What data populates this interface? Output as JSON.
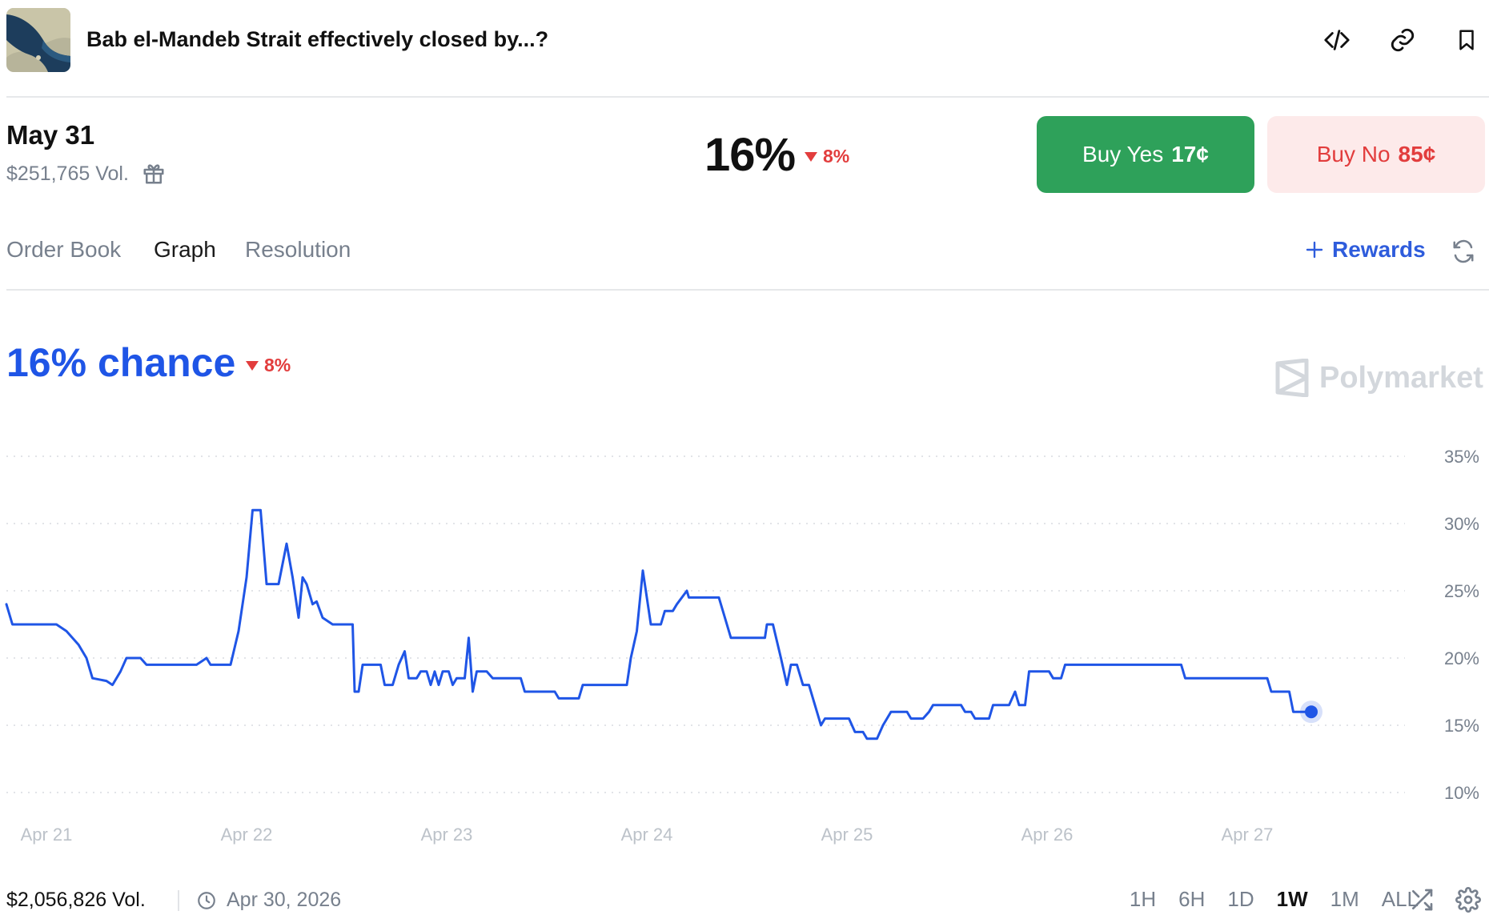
{
  "header": {
    "title": "Bab el-Mandeb Strait effectively closed by...?",
    "icons": [
      "embed-code-icon",
      "link-icon",
      "bookmark-icon"
    ]
  },
  "outcome": {
    "date": "May 31",
    "volume": "$251,765 Vol.",
    "probability": "16%",
    "change": "8%",
    "change_direction": "down",
    "buy_yes_label": "Buy Yes",
    "buy_yes_price": "17¢",
    "buy_no_label": "Buy No",
    "buy_no_price": "85¢"
  },
  "tabs": {
    "items": [
      "Order Book",
      "Graph",
      "Resolution"
    ],
    "active": "Graph",
    "rewards_label": "Rewards"
  },
  "chance": {
    "label": "16% chance",
    "change": "8%"
  },
  "brand": {
    "name": "Polymarket"
  },
  "chart_data": {
    "type": "line",
    "series": [
      {
        "color": "#1f55e6",
        "points": [
          [
            0,
            24
          ],
          [
            0.03,
            22.5
          ],
          [
            0.25,
            22.5
          ],
          [
            0.3,
            22
          ],
          [
            0.36,
            21
          ],
          [
            0.4,
            20
          ],
          [
            0.43,
            18.5
          ],
          [
            0.5,
            18.3
          ],
          [
            0.53,
            18
          ],
          [
            0.57,
            19
          ],
          [
            0.6,
            20
          ],
          [
            0.67,
            20
          ],
          [
            0.7,
            19.5
          ],
          [
            0.95,
            19.5
          ],
          [
            1.0,
            20
          ],
          [
            1.02,
            19.5
          ],
          [
            1.12,
            19.5
          ],
          [
            1.16,
            22
          ],
          [
            1.2,
            26
          ],
          [
            1.23,
            31
          ],
          [
            1.27,
            31
          ],
          [
            1.3,
            25.5
          ],
          [
            1.36,
            25.5
          ],
          [
            1.4,
            28.5
          ],
          [
            1.43,
            26
          ],
          [
            1.46,
            23
          ],
          [
            1.48,
            26
          ],
          [
            1.5,
            25.5
          ],
          [
            1.53,
            24
          ],
          [
            1.55,
            24.2
          ],
          [
            1.58,
            23
          ],
          [
            1.63,
            22.5
          ],
          [
            1.73,
            22.5
          ],
          [
            1.74,
            17.5
          ],
          [
            1.76,
            17.5
          ],
          [
            1.78,
            19.5
          ],
          [
            1.87,
            19.5
          ],
          [
            1.89,
            18
          ],
          [
            1.93,
            18
          ],
          [
            1.96,
            19.5
          ],
          [
            1.99,
            20.5
          ],
          [
            2.01,
            18.5
          ],
          [
            2.05,
            18.5
          ],
          [
            2.07,
            19
          ],
          [
            2.1,
            19
          ],
          [
            2.12,
            18
          ],
          [
            2.14,
            19
          ],
          [
            2.16,
            18
          ],
          [
            2.18,
            19
          ],
          [
            2.21,
            19
          ],
          [
            2.23,
            18
          ],
          [
            2.25,
            18.5
          ],
          [
            2.29,
            18.5
          ],
          [
            2.31,
            21.5
          ],
          [
            2.33,
            17.5
          ],
          [
            2.35,
            19
          ],
          [
            2.4,
            19
          ],
          [
            2.43,
            18.5
          ],
          [
            2.57,
            18.5
          ],
          [
            2.59,
            17.5
          ],
          [
            2.74,
            17.5
          ],
          [
            2.76,
            17
          ],
          [
            2.86,
            17
          ],
          [
            2.88,
            18
          ],
          [
            3.1,
            18
          ],
          [
            3.12,
            20
          ],
          [
            3.15,
            22
          ],
          [
            3.18,
            26.5
          ],
          [
            3.22,
            22.5
          ],
          [
            3.27,
            22.5
          ],
          [
            3.29,
            23.5
          ],
          [
            3.33,
            23.5
          ],
          [
            3.35,
            24
          ],
          [
            3.4,
            25
          ],
          [
            3.41,
            24.5
          ],
          [
            3.56,
            24.5
          ],
          [
            3.59,
            23
          ],
          [
            3.62,
            21.5
          ],
          [
            3.79,
            21.5
          ],
          [
            3.8,
            22.5
          ],
          [
            3.83,
            22.5
          ],
          [
            3.87,
            20
          ],
          [
            3.9,
            18
          ],
          [
            3.92,
            19.5
          ],
          [
            3.95,
            19.5
          ],
          [
            3.98,
            18
          ],
          [
            4.01,
            18
          ],
          [
            4.03,
            17
          ],
          [
            4.05,
            16
          ],
          [
            4.07,
            15
          ],
          [
            4.09,
            15.5
          ],
          [
            4.21,
            15.5
          ],
          [
            4.24,
            14.5
          ],
          [
            4.28,
            14.5
          ],
          [
            4.3,
            14
          ],
          [
            4.35,
            14
          ],
          [
            4.38,
            15
          ],
          [
            4.42,
            16
          ],
          [
            4.5,
            16
          ],
          [
            4.52,
            15.5
          ],
          [
            4.58,
            15.5
          ],
          [
            4.61,
            16
          ],
          [
            4.63,
            16.5
          ],
          [
            4.77,
            16.5
          ],
          [
            4.79,
            16
          ],
          [
            4.82,
            16
          ],
          [
            4.84,
            15.5
          ],
          [
            4.91,
            15.5
          ],
          [
            4.93,
            16.5
          ],
          [
            5.01,
            16.5
          ],
          [
            5.04,
            17.5
          ],
          [
            5.06,
            16.5
          ],
          [
            5.09,
            16.5
          ],
          [
            5.11,
            19
          ],
          [
            5.21,
            19
          ],
          [
            5.23,
            18.5
          ],
          [
            5.27,
            18.5
          ],
          [
            5.29,
            19.5
          ],
          [
            5.45,
            19.5
          ],
          [
            5.6,
            19.5
          ],
          [
            5.87,
            19.5
          ],
          [
            5.89,
            18.5
          ],
          [
            6.27,
            18.5
          ],
          [
            6.3,
            18.5
          ],
          [
            6.32,
            17.5
          ],
          [
            6.41,
            17.5
          ],
          [
            6.43,
            16
          ],
          [
            6.5,
            16
          ],
          [
            6.52,
            16
          ]
        ]
      }
    ],
    "x_labels": [
      "Apr 21",
      "Apr 22",
      "Apr 23",
      "Apr 24",
      "Apr 25",
      "Apr 26",
      "Apr 27"
    ],
    "y_ticks": [
      10,
      15,
      20,
      25,
      30,
      35
    ],
    "y_tick_labels": [
      "10%",
      "15%",
      "20%",
      "25%",
      "30%",
      "35%"
    ],
    "ylim": [
      10,
      35
    ],
    "xlim": [
      0,
      6.52
    ],
    "grid": "dotted horizontal",
    "last_point_marker": true
  },
  "footer": {
    "volume": "$2,056,826 Vol.",
    "date": "Apr 30, 2026",
    "ranges": [
      "1H",
      "6H",
      "1D",
      "1W",
      "1M",
      "ALL"
    ],
    "selected_range": "1W"
  }
}
